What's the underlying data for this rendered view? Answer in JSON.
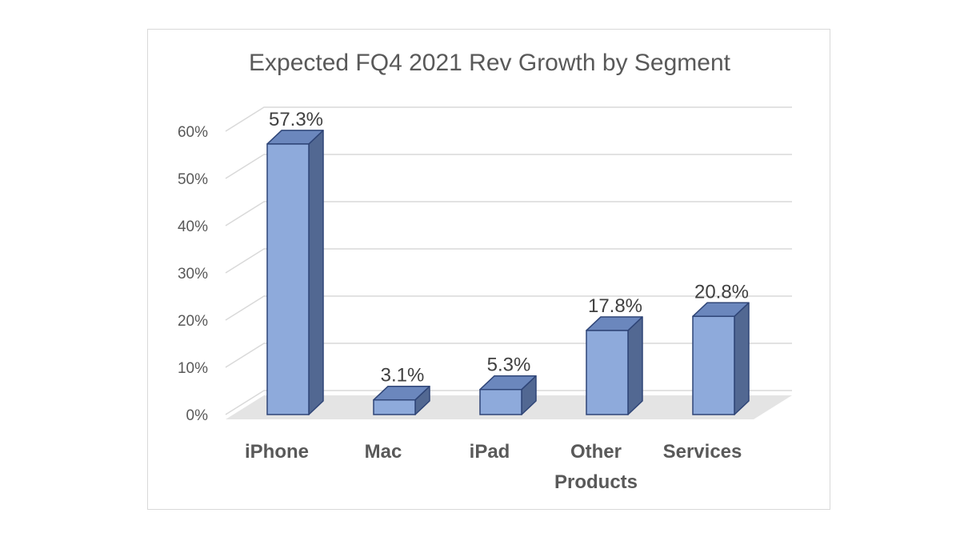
{
  "chart_data": {
    "type": "bar",
    "style": "3d-column",
    "title": "Expected FQ4 2021 Rev Growth by Segment",
    "xlabel": "",
    "ylabel": "",
    "categories": [
      [
        "iPhone"
      ],
      [
        "Mac"
      ],
      [
        "iPad"
      ],
      [
        "Other",
        "Products"
      ],
      [
        "Services"
      ]
    ],
    "values": [
      57.3,
      3.1,
      5.3,
      17.8,
      20.8
    ],
    "data_labels": [
      "57.3%",
      "3.1%",
      "5.3%",
      "17.8%",
      "20.8%"
    ],
    "ylim": [
      0,
      60
    ],
    "yticks": [
      0,
      10,
      20,
      30,
      40,
      50,
      60
    ],
    "ytick_labels": [
      "0%",
      "10%",
      "20%",
      "30%",
      "40%",
      "50%",
      "60%"
    ],
    "grid": true,
    "legend": "none"
  },
  "colors": {
    "bar_front": "#8eaadb",
    "bar_side": "#526892",
    "bar_top": "#6b87bd",
    "bar_outline": "#2f4577",
    "grid": "#d9d9d9",
    "floor": "#e4e4e4",
    "text": "#595959",
    "label_text": "#404040"
  }
}
